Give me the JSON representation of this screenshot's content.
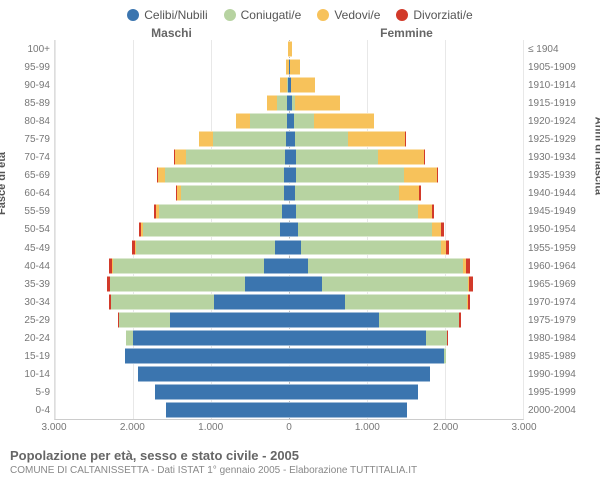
{
  "title": "Popolazione per età, sesso e stato civile - 2005",
  "subtitle": "COMUNE DI CALTANISSETTA - Dati ISTAT 1° gennaio 2005 - Elaborazione TUTTITALIA.IT",
  "y_left_title": "Fasce di età",
  "y_right_title": "Anni di nascita",
  "header_left": "Maschi",
  "header_right": "Femmine",
  "legend": [
    {
      "label": "Celibi/Nubili",
      "color": "#3b75af"
    },
    {
      "label": "Coniugati/e",
      "color": "#b7d3a1"
    },
    {
      "label": "Vedovi/e",
      "color": "#f7c25b"
    },
    {
      "label": "Divorziati/e",
      "color": "#d23a2a"
    }
  ],
  "colors": {
    "celibi": "#3b75af",
    "coniugati": "#b7d3a1",
    "vedovi": "#f7c25b",
    "divorziati": "#d23a2a",
    "grid": "#e8e8e8",
    "bg": "#ffffff"
  },
  "x_max": 3000,
  "x_ticks": [
    -3000,
    -2000,
    -1000,
    0,
    1000,
    2000,
    3000
  ],
  "x_tick_labels": [
    "3.000",
    "2.000",
    "1.000",
    "0",
    "1.000",
    "2.000",
    "3.000"
  ],
  "age_labels": [
    "100+",
    "95-99",
    "90-94",
    "85-89",
    "80-84",
    "75-79",
    "70-74",
    "65-69",
    "60-64",
    "55-59",
    "50-54",
    "45-49",
    "40-44",
    "35-39",
    "30-34",
    "25-29",
    "20-24",
    "15-19",
    "10-14",
    "5-9",
    "0-4"
  ],
  "year_labels": [
    "≤ 1904",
    "1905-1909",
    "1910-1914",
    "1915-1919",
    "1920-1924",
    "1925-1929",
    "1930-1934",
    "1935-1939",
    "1940-1944",
    "1945-1949",
    "1950-1954",
    "1955-1959",
    "1960-1964",
    "1965-1969",
    "1970-1974",
    "1975-1979",
    "1980-1984",
    "1985-1989",
    "1990-1994",
    "1995-1999",
    "2000-2004"
  ],
  "rows": [
    {
      "m": {
        "c": 0,
        "k": 0,
        "v": 10,
        "d": 0
      },
      "f": {
        "c": 0,
        "k": 0,
        "v": 40,
        "d": 0
      }
    },
    {
      "m": {
        "c": 5,
        "k": 0,
        "v": 30,
        "d": 0
      },
      "f": {
        "c": 10,
        "k": 0,
        "v": 130,
        "d": 0
      }
    },
    {
      "m": {
        "c": 10,
        "k": 20,
        "v": 80,
        "d": 0
      },
      "f": {
        "c": 20,
        "k": 10,
        "v": 300,
        "d": 0
      }
    },
    {
      "m": {
        "c": 20,
        "k": 130,
        "v": 130,
        "d": 0
      },
      "f": {
        "c": 40,
        "k": 40,
        "v": 580,
        "d": 0
      }
    },
    {
      "m": {
        "c": 30,
        "k": 470,
        "v": 180,
        "d": 0
      },
      "f": {
        "c": 60,
        "k": 260,
        "v": 770,
        "d": 0
      }
    },
    {
      "m": {
        "c": 45,
        "k": 930,
        "v": 180,
        "d": 5
      },
      "f": {
        "c": 80,
        "k": 680,
        "v": 730,
        "d": 5
      }
    },
    {
      "m": {
        "c": 55,
        "k": 1270,
        "v": 140,
        "d": 10
      },
      "f": {
        "c": 85,
        "k": 1060,
        "v": 590,
        "d": 10
      }
    },
    {
      "m": {
        "c": 65,
        "k": 1520,
        "v": 90,
        "d": 15
      },
      "f": {
        "c": 90,
        "k": 1390,
        "v": 420,
        "d": 15
      }
    },
    {
      "m": {
        "c": 60,
        "k": 1320,
        "v": 55,
        "d": 20
      },
      "f": {
        "c": 80,
        "k": 1330,
        "v": 260,
        "d": 25
      }
    },
    {
      "m": {
        "c": 85,
        "k": 1580,
        "v": 35,
        "d": 25
      },
      "f": {
        "c": 95,
        "k": 1560,
        "v": 180,
        "d": 30
      }
    },
    {
      "m": {
        "c": 120,
        "k": 1750,
        "v": 25,
        "d": 30
      },
      "f": {
        "c": 115,
        "k": 1720,
        "v": 120,
        "d": 35
      }
    },
    {
      "m": {
        "c": 180,
        "k": 1780,
        "v": 15,
        "d": 35
      },
      "f": {
        "c": 150,
        "k": 1800,
        "v": 60,
        "d": 45
      }
    },
    {
      "m": {
        "c": 320,
        "k": 1940,
        "v": 10,
        "d": 40
      },
      "f": {
        "c": 240,
        "k": 1990,
        "v": 35,
        "d": 55
      }
    },
    {
      "m": {
        "c": 560,
        "k": 1730,
        "v": 5,
        "d": 35
      },
      "f": {
        "c": 420,
        "k": 1870,
        "v": 20,
        "d": 45
      }
    },
    {
      "m": {
        "c": 960,
        "k": 1320,
        "v": 3,
        "d": 25
      },
      "f": {
        "c": 720,
        "k": 1560,
        "v": 10,
        "d": 35
      }
    },
    {
      "m": {
        "c": 1530,
        "k": 650,
        "v": 0,
        "d": 10
      },
      "f": {
        "c": 1160,
        "k": 1020,
        "v": 5,
        "d": 20
      }
    },
    {
      "m": {
        "c": 2000,
        "k": 90,
        "v": 0,
        "d": 0
      },
      "f": {
        "c": 1750,
        "k": 280,
        "v": 0,
        "d": 5
      }
    },
    {
      "m": {
        "c": 2100,
        "k": 5,
        "v": 0,
        "d": 0
      },
      "f": {
        "c": 1990,
        "k": 25,
        "v": 0,
        "d": 0
      }
    },
    {
      "m": {
        "c": 1930,
        "k": 0,
        "v": 0,
        "d": 0
      },
      "f": {
        "c": 1810,
        "k": 0,
        "v": 0,
        "d": 0
      }
    },
    {
      "m": {
        "c": 1720,
        "k": 0,
        "v": 0,
        "d": 0
      },
      "f": {
        "c": 1650,
        "k": 0,
        "v": 0,
        "d": 0
      }
    },
    {
      "m": {
        "c": 1580,
        "k": 0,
        "v": 0,
        "d": 0
      },
      "f": {
        "c": 1510,
        "k": 0,
        "v": 0,
        "d": 0
      }
    }
  ]
}
